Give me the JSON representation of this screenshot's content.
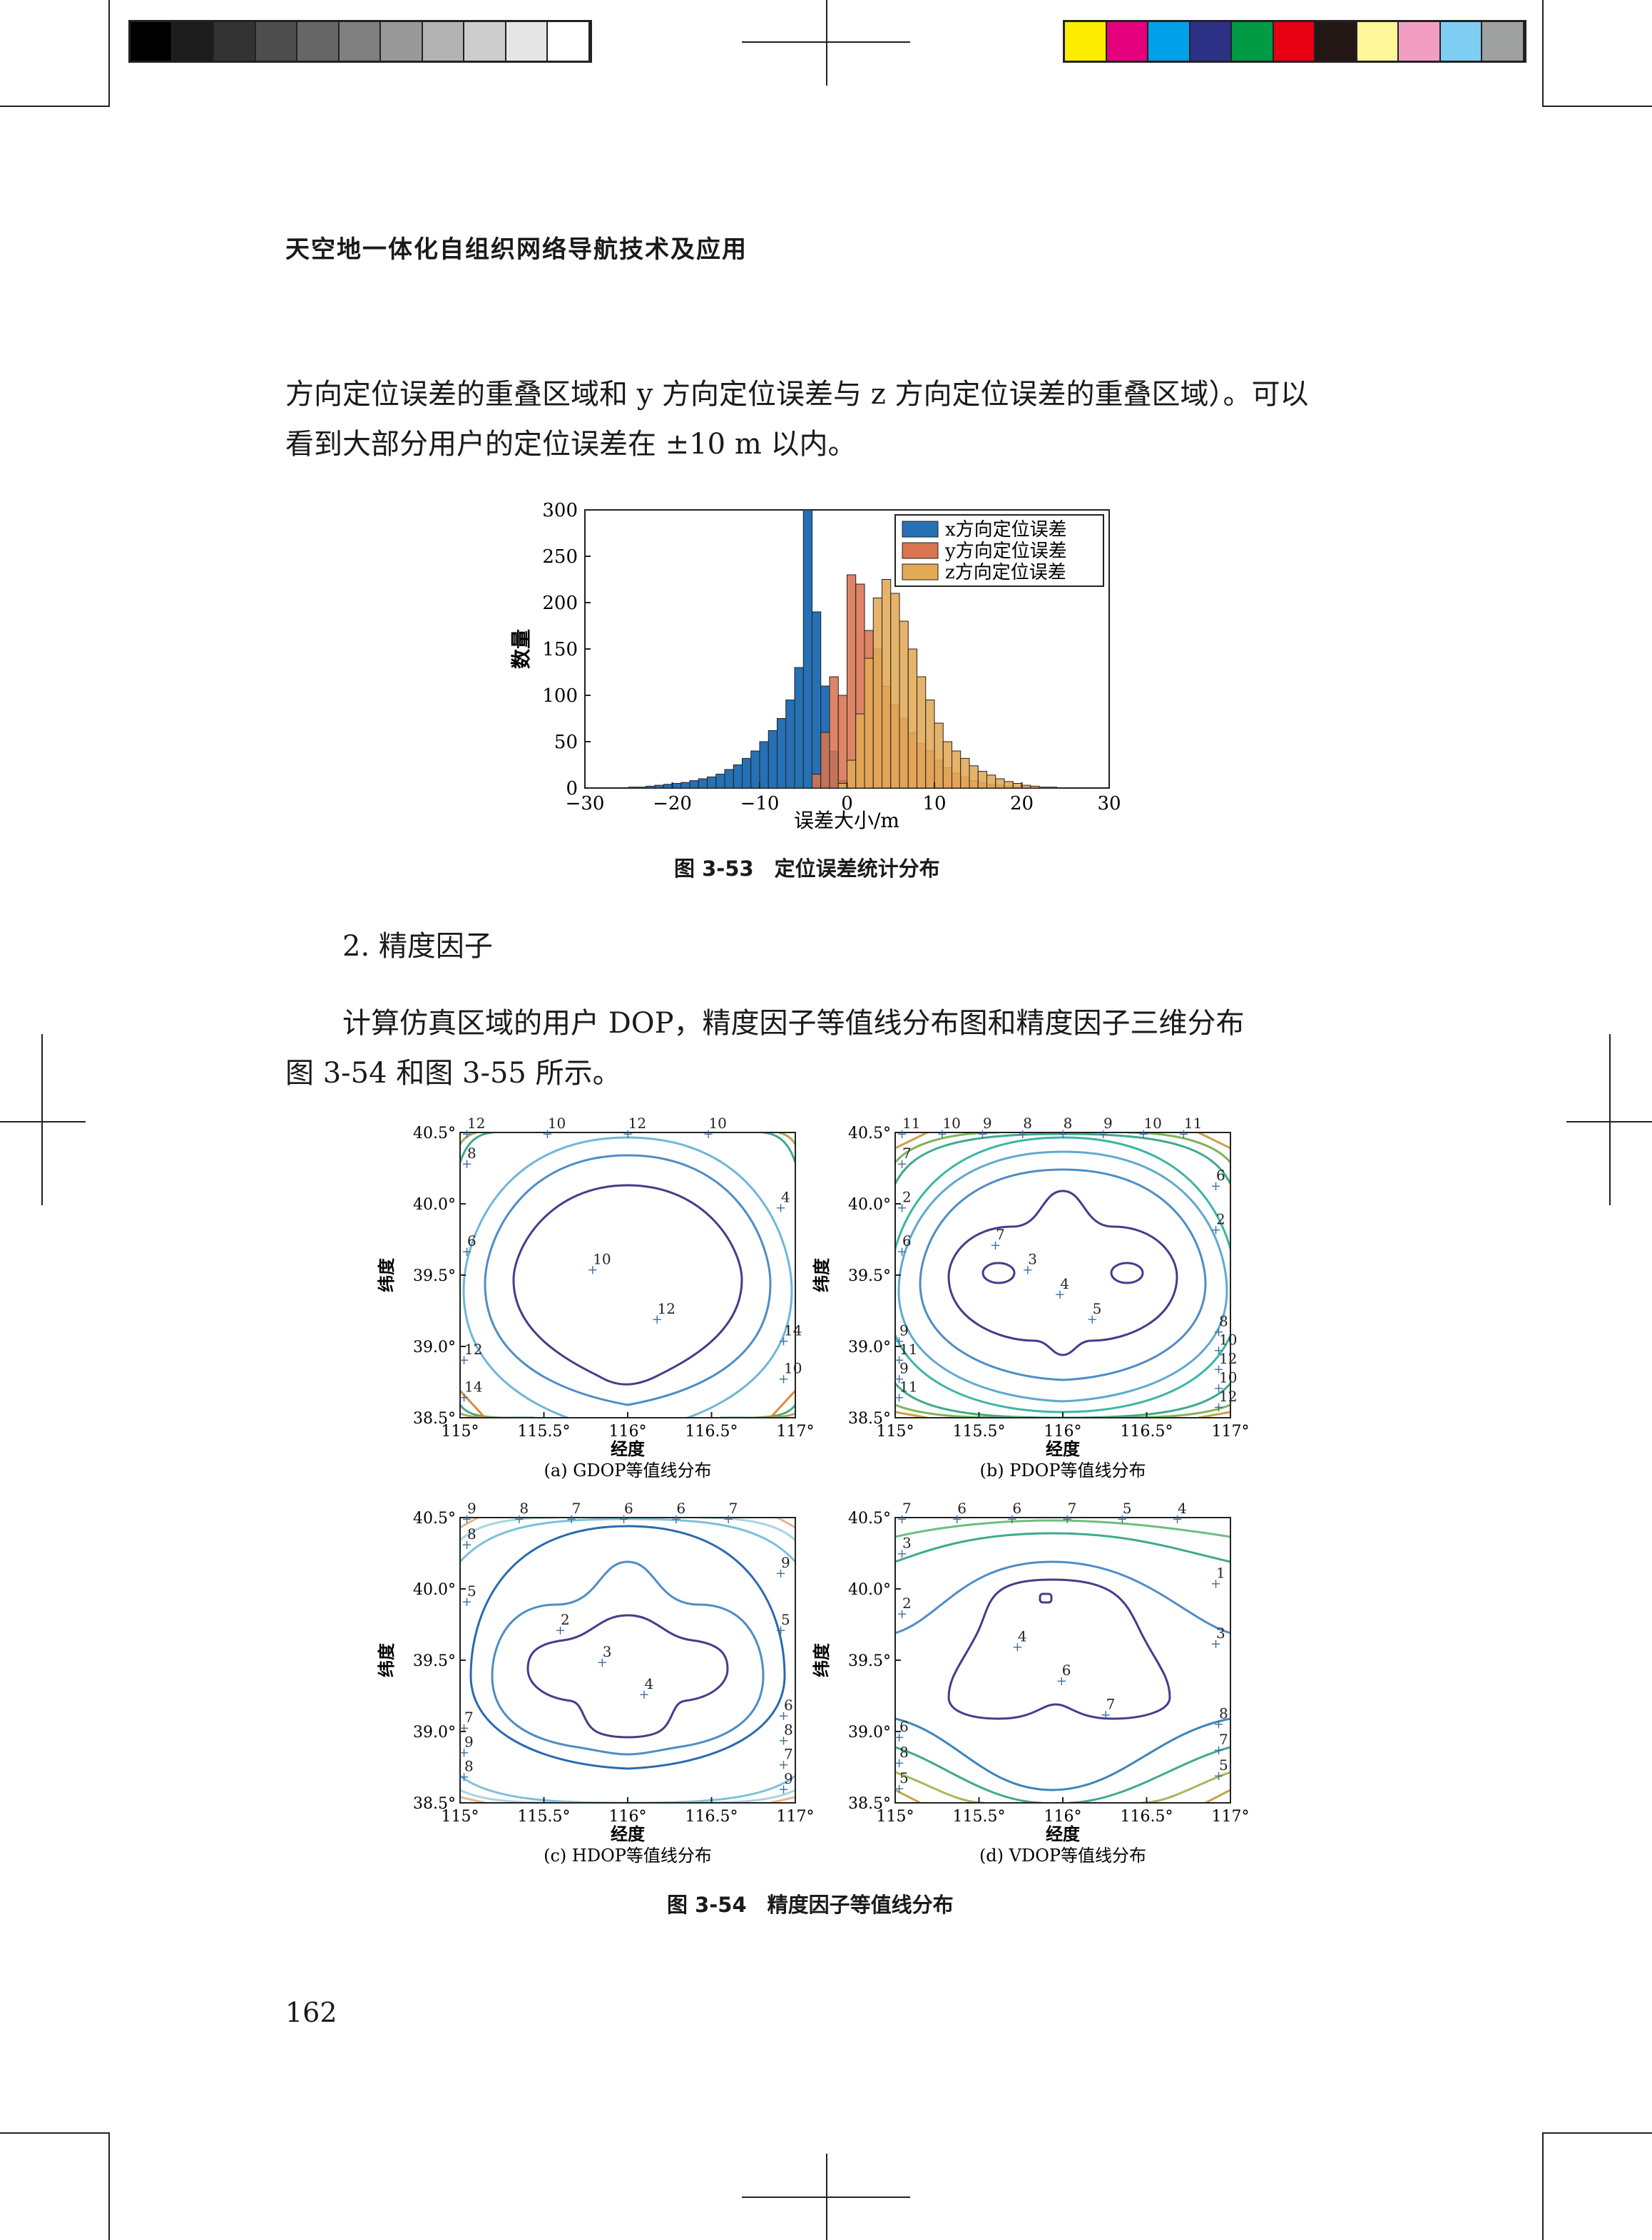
{
  "header": {
    "running_title": "天空地一体化自组织网络导航技术及应用"
  },
  "paragraph1": {
    "line1": "方向定位误差的重叠区域和 y 方向定位误差与 z 方向定位误差的重叠区域）。可以",
    "line2": "看到大部分用户的定位误差在 ±10 m 以内。"
  },
  "figure53": {
    "caption": "图 3-53　定位误差统计分布",
    "chart_data": {
      "type": "bar",
      "xlabel": "误差大小/m",
      "ylabel": "数量",
      "xlim": [
        -30,
        30
      ],
      "ylim": [
        0,
        300
      ],
      "x_ticks": [
        "−30",
        "−20",
        "−10",
        "0",
        "10",
        "20",
        "30"
      ],
      "y_ticks": [
        "0",
        "50",
        "100",
        "150",
        "200",
        "250",
        "300"
      ],
      "legend_position": "top-right",
      "bin_width": 1,
      "series": [
        {
          "name": "x方向定位误差",
          "color": "#2670b5",
          "bins_start": [
            -25,
            -24,
            -23,
            -22,
            -21,
            -20,
            -19,
            -18,
            -17,
            -16,
            -15,
            -14,
            -13,
            -12,
            -11,
            -10,
            -9,
            -8,
            -7,
            -6,
            -5,
            -4,
            -3,
            -2,
            -1,
            0
          ],
          "values": [
            1,
            1,
            2,
            3,
            4,
            5,
            6,
            8,
            10,
            12,
            15,
            20,
            25,
            32,
            40,
            50,
            62,
            75,
            95,
            130,
            300,
            190,
            110,
            40,
            8,
            1
          ]
        },
        {
          "name": "y方向定位误差",
          "color": "#d8744f",
          "bins_start": [
            -4,
            -3,
            -2,
            -1,
            0,
            1,
            2,
            3,
            4,
            5,
            6,
            7,
            8,
            9,
            10,
            11,
            12,
            13,
            14,
            15,
            16,
            17,
            18,
            19,
            20
          ],
          "values": [
            15,
            60,
            120,
            100,
            230,
            220,
            170,
            150,
            110,
            90,
            75,
            60,
            48,
            40,
            30,
            22,
            16,
            12,
            8,
            6,
            4,
            3,
            2,
            1,
            1
          ]
        },
        {
          "name": "z方向定位误差",
          "color": "#e3a955",
          "bins_start": [
            -1,
            0,
            1,
            2,
            3,
            4,
            5,
            6,
            7,
            8,
            9,
            10,
            11,
            12,
            13,
            14,
            15,
            16,
            17,
            18,
            19,
            20,
            21,
            22,
            23
          ],
          "values": [
            5,
            30,
            80,
            140,
            205,
            225,
            210,
            180,
            150,
            120,
            95,
            70,
            50,
            40,
            32,
            24,
            18,
            14,
            10,
            7,
            5,
            3,
            2,
            1,
            1
          ]
        }
      ]
    }
  },
  "section_heading": "2.  精度因子",
  "paragraph2": {
    "line1": "计算仿真区域的用户 DOP，精度因子等值线分布图和精度因子三维分布",
    "line2": "图 3-54 和图 3-55 所示。"
  },
  "figure54": {
    "caption": "图 3-54　精度因子等值线分布",
    "xlabel": "经度",
    "ylabel": "纬度",
    "x_ticks": [
      "115°",
      "115.5°",
      "116°",
      "116.5°",
      "117°"
    ],
    "y_ticks": [
      "38.5°",
      "39.0°",
      "39.5°",
      "40.0°",
      "40.5°"
    ],
    "panels": [
      {
        "caption": "(a)  GDOP等值线分布",
        "labels": [
          "12",
          "10",
          "12",
          "10",
          "8",
          "4",
          "6",
          "10",
          "12",
          "14",
          "12",
          "10",
          "14"
        ]
      },
      {
        "caption": "(b)  PDOP等值线分布",
        "labels": [
          "11",
          "10",
          "9",
          "8",
          "8",
          "9",
          "10",
          "11",
          "7",
          "6",
          "2",
          "2",
          "6",
          "7",
          "3",
          "4",
          "5",
          "8",
          "9",
          "10",
          "11",
          "12",
          "9",
          "10",
          "11",
          "12"
        ]
      },
      {
        "caption": "(c)  HDOP等值线分布",
        "labels": [
          "9",
          "8",
          "7",
          "6",
          "6",
          "7",
          "8",
          "9",
          "5",
          "5",
          "2",
          "3",
          "4",
          "6",
          "7",
          "8",
          "9",
          "7",
          "8",
          "9"
        ]
      },
      {
        "caption": "(d)  VDOP等值线分布",
        "labels": [
          "7",
          "6",
          "6",
          "7",
          "5",
          "4",
          "3",
          "1",
          "2",
          "3",
          "4",
          "6",
          "7",
          "8",
          "6",
          "7",
          "8",
          "5",
          "5"
        ]
      }
    ]
  },
  "page_number": "162",
  "colors": {
    "gray_strip": [
      "#000000",
      "#1c1c1c",
      "#333333",
      "#4d4d4d",
      "#666666",
      "#808080",
      "#999999",
      "#b3b3b3",
      "#cccccc",
      "#e6e6e6",
      "#ffffff"
    ],
    "color_strip": [
      "#ffed00",
      "#e5007e",
      "#00a0e9",
      "#2d3186",
      "#009944",
      "#e60012",
      "#231815",
      "#fff799",
      "#f29ec3",
      "#7ecef4",
      "#9fa0a0"
    ]
  }
}
